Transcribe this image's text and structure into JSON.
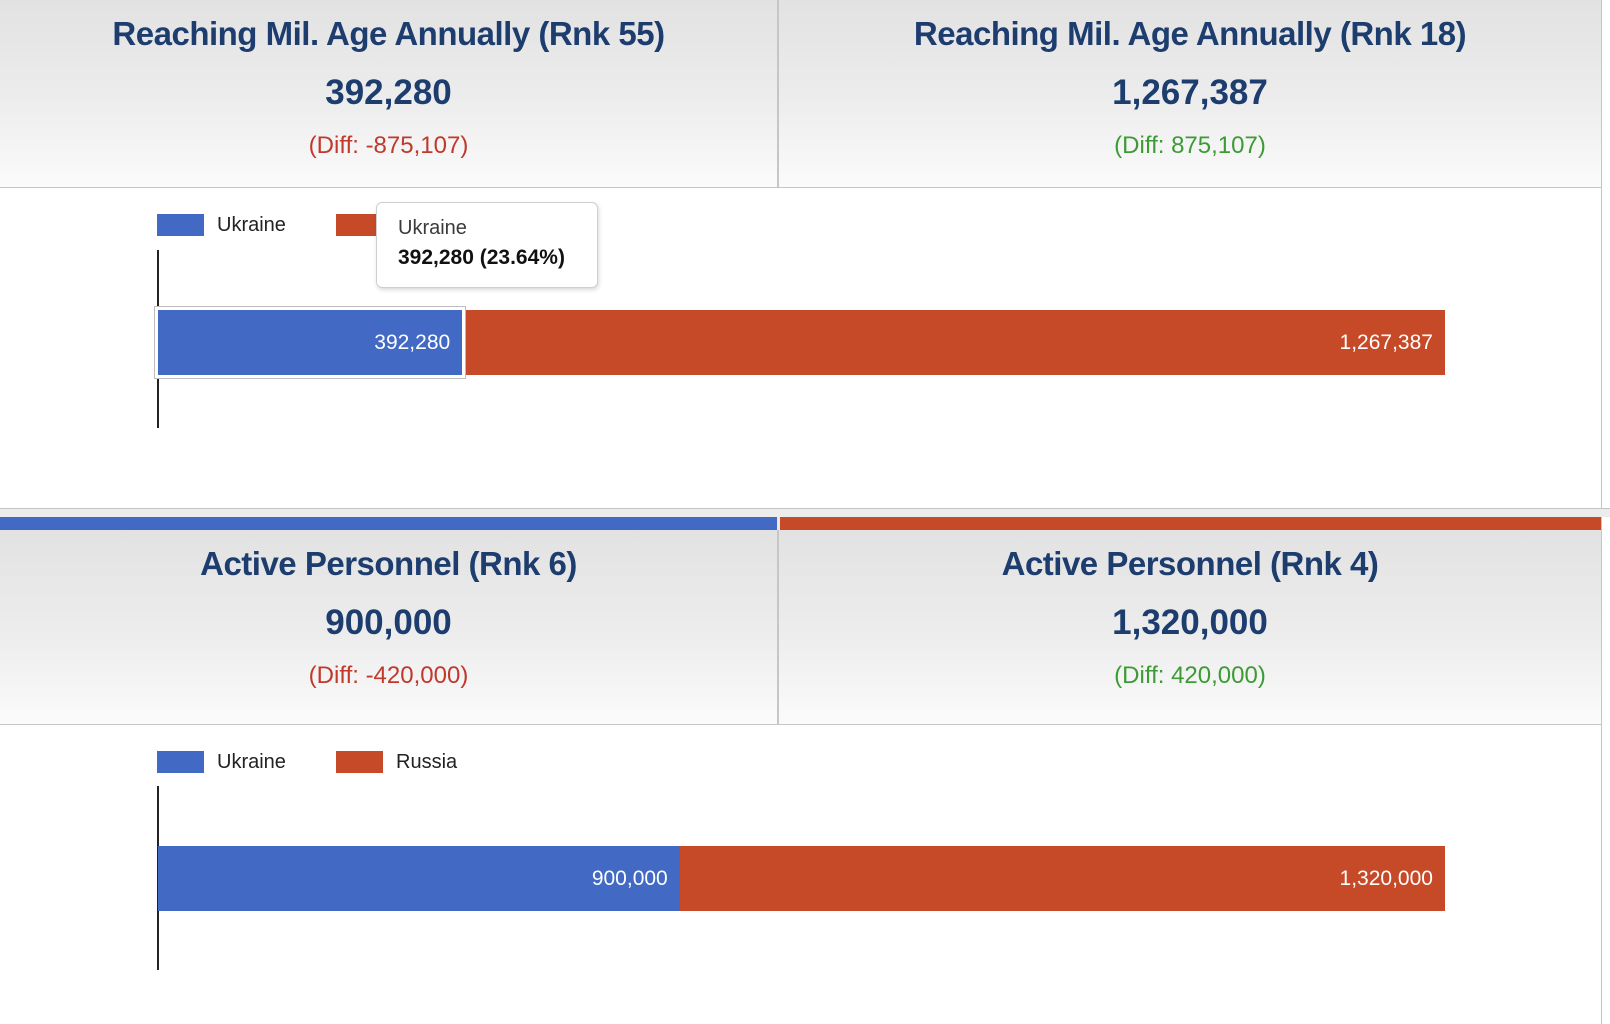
{
  "colors": {
    "ukraine_blue": "#4269C4",
    "russia_red": "#C74A28",
    "navy": "#1D3D6F",
    "diff_negative": "#C0392B",
    "diff_positive": "#3D9B35"
  },
  "legend": {
    "ukraine": "Ukraine",
    "russia": "Russia"
  },
  "tooltip": {
    "title": "Ukraine",
    "value_line": "392,280 (23.64%)"
  },
  "sections": [
    {
      "left": {
        "title": "Reaching Mil. Age Annually (Rnk 55)",
        "value": "392,280",
        "diff": "(Diff: -875,107)"
      },
      "right": {
        "title": "Reaching Mil. Age Annually (Rnk 18)",
        "value": "1,267,387",
        "diff": "(Diff: 875,107)"
      },
      "bar": {
        "ukraine_label": "392,280",
        "russia_label": "1,267,387"
      }
    },
    {
      "left": {
        "title": "Active Personnel (Rnk 6)",
        "value": "900,000",
        "diff": "(Diff: -420,000)"
      },
      "right": {
        "title": "Active Personnel (Rnk 4)",
        "value": "1,320,000",
        "diff": "(Diff: 420,000)"
      },
      "bar": {
        "ukraine_label": "900,000",
        "russia_label": "1,320,000"
      }
    }
  ],
  "chart_data": [
    {
      "type": "bar",
      "orientation": "horizontal",
      "stacked": true,
      "title": "Reaching Mil. Age Annually",
      "categories": [
        "Reaching Mil. Age Annually"
      ],
      "series": [
        {
          "name": "Ukraine",
          "values": [
            392280
          ]
        },
        {
          "name": "Russia",
          "values": [
            1267387
          ]
        }
      ],
      "ukraine_rank": 55,
      "russia_rank": 18,
      "difference": 875107,
      "ukraine_share_pct": 23.64,
      "legend_position": "top-left",
      "grid": false,
      "tooltip_shown": {
        "series": "Ukraine",
        "text": "392,280 (23.64%)"
      }
    },
    {
      "type": "bar",
      "orientation": "horizontal",
      "stacked": true,
      "title": "Active Personnel",
      "categories": [
        "Active Personnel"
      ],
      "series": [
        {
          "name": "Ukraine",
          "values": [
            900000
          ]
        },
        {
          "name": "Russia",
          "values": [
            1320000
          ]
        }
      ],
      "ukraine_rank": 6,
      "russia_rank": 4,
      "difference": 420000,
      "ukraine_share_pct": 40.54,
      "legend_position": "top-left",
      "grid": false
    }
  ]
}
